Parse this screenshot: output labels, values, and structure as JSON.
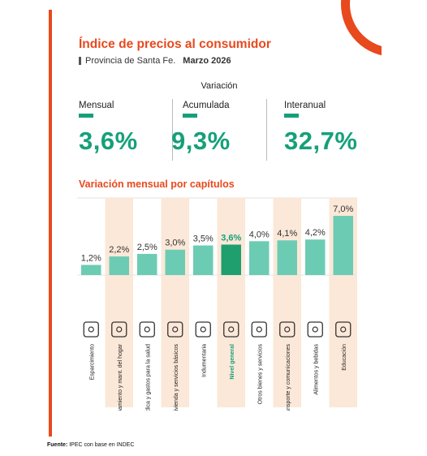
{
  "header": {
    "title": "Índice de precios al consumidor",
    "region": "Provincia de Santa Fe.",
    "date": "Marzo 2026"
  },
  "variation": {
    "heading": "Variación",
    "metrics": [
      {
        "label": "Mensual",
        "value": "3,6%"
      },
      {
        "label": "Acumulada",
        "value": "9,3%"
      },
      {
        "label": "Interanual",
        "value": "32,7%"
      }
    ]
  },
  "colors": {
    "accent": "#e8491d",
    "green": "#16a07a",
    "bar": "#6cccb3",
    "bar_highlight": "#1f9e6e",
    "band": "#fbe8d8"
  },
  "chart_data": {
    "type": "bar",
    "title": "Variación mensual por capítulos",
    "categories": [
      "Esparcimiento",
      "Equipamiento y mant. del hogar",
      "Atención médica y gastos para la salud",
      "Vivienda y servicios básicos",
      "Indumentaria",
      "Nivel general",
      "Otros bienes y servicios",
      "Transporte y comunicaciones",
      "Alimentos y bebidas",
      "Educación"
    ],
    "values": [
      1.2,
      2.2,
      2.5,
      3.0,
      3.5,
      3.6,
      4.0,
      4.1,
      4.2,
      7.0
    ],
    "labels": [
      "1,2%",
      "2,2%",
      "2,5%",
      "3,0%",
      "3,5%",
      "3,6%",
      "4,0%",
      "4,1%",
      "4,2%",
      "7,0%"
    ],
    "icons": [
      "ticket-icon",
      "wrench-house-icon",
      "medical-cross-icon",
      "house-icon",
      "shirt-icon",
      "money-icon",
      "coin-hand-icon",
      "car-icon",
      "basket-icon",
      "graduation-cap-icon"
    ],
    "highlight": "Nivel general",
    "ylim": [
      0,
      7.0
    ]
  },
  "footer": {
    "source_label": "Fuente:",
    "source_text": "IPEC con base en INDEC"
  }
}
